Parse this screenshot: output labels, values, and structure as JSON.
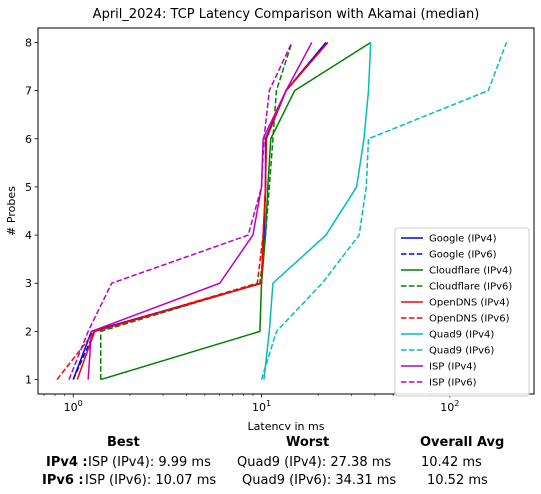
{
  "chart_data": {
    "type": "line",
    "title": "April_2024: TCP Latency Comparison with Akamai (median)",
    "xlabel": "Latency in ms",
    "ylabel": "# Probes",
    "xscale": "log",
    "xlim": [
      0.65,
      280
    ],
    "ylim": [
      0.7,
      8.3
    ],
    "xticks": [
      {
        "v": 1,
        "label": "10^0"
      },
      {
        "v": 10,
        "label": "10^1"
      },
      {
        "v": 100,
        "label": "10^2"
      }
    ],
    "yticks": [
      1,
      2,
      3,
      4,
      5,
      6,
      7,
      8
    ],
    "grid": false,
    "legend": "lower right",
    "series": [
      {
        "name": "Google (IPv4)",
        "color": "#0000ff",
        "dash": false,
        "points": [
          [
            1.0,
            1
          ],
          [
            1.25,
            2
          ],
          [
            10.0,
            3
          ],
          [
            10.3,
            4
          ],
          [
            10.5,
            5
          ],
          [
            10.5,
            6
          ],
          [
            13.5,
            7
          ],
          [
            22.0,
            8
          ]
        ]
      },
      {
        "name": "Google (IPv6)",
        "color": "#0000ff",
        "dash": true,
        "points": [
          [
            1.0,
            1
          ],
          [
            1.3,
            2
          ],
          [
            10.0,
            3
          ],
          [
            10.3,
            4
          ],
          [
            10.5,
            5
          ],
          [
            10.6,
            6
          ],
          [
            13.5,
            7
          ],
          [
            22.0,
            8
          ]
        ]
      },
      {
        "name": "Cloudflare (IPv4)",
        "color": "#008000",
        "dash": false,
        "points": [
          [
            1.4,
            1
          ],
          [
            9.8,
            2
          ],
          [
            10.0,
            3
          ],
          [
            10.5,
            4
          ],
          [
            10.8,
            5
          ],
          [
            11.2,
            6
          ],
          [
            15.0,
            7
          ],
          [
            38.0,
            8
          ]
        ]
      },
      {
        "name": "Cloudflare (IPv6)",
        "color": "#008000",
        "dash": true,
        "points": [
          [
            1.4,
            1
          ],
          [
            1.4,
            2
          ],
          [
            9.8,
            3
          ],
          [
            10.5,
            4
          ],
          [
            11.0,
            5
          ],
          [
            11.5,
            6
          ],
          [
            12.0,
            7
          ],
          [
            14.5,
            8
          ]
        ]
      },
      {
        "name": "OpenDNS (IPv4)",
        "color": "#ff0000",
        "dash": false,
        "points": [
          [
            1.05,
            1
          ],
          [
            1.3,
            2
          ],
          [
            10.0,
            3
          ],
          [
            10.2,
            4
          ],
          [
            10.5,
            5
          ],
          [
            10.6,
            6
          ],
          [
            13.5,
            7
          ],
          [
            22.5,
            8
          ]
        ]
      },
      {
        "name": "OpenDNS (IPv6)",
        "color": "#ff0000",
        "dash": true,
        "points": [
          [
            0.82,
            1
          ],
          [
            1.3,
            2
          ],
          [
            9.5,
            3
          ],
          [
            10.2,
            4
          ],
          [
            10.5,
            5
          ],
          [
            10.6,
            6
          ],
          [
            13.5,
            7
          ],
          [
            22.5,
            8
          ]
        ]
      },
      {
        "name": "Quad9 (IPv4)",
        "color": "#00bfbf",
        "dash": false,
        "points": [
          [
            10.3,
            1
          ],
          [
            11.0,
            2
          ],
          [
            11.5,
            3
          ],
          [
            22.0,
            4
          ],
          [
            32.0,
            5
          ],
          [
            35.0,
            6
          ],
          [
            37.0,
            7
          ],
          [
            38.0,
            8
          ]
        ]
      },
      {
        "name": "Quad9 (IPv6)",
        "color": "#00bfbf",
        "dash": true,
        "points": [
          [
            10.0,
            1
          ],
          [
            12.0,
            2
          ],
          [
            21.0,
            3
          ],
          [
            33.0,
            4
          ],
          [
            36.0,
            5
          ],
          [
            37.0,
            6
          ],
          [
            160.0,
            7
          ],
          [
            200.0,
            8
          ]
        ]
      },
      {
        "name": "ISP (IPv4)",
        "color": "#bf00bf",
        "dash": false,
        "points": [
          [
            1.2,
            1
          ],
          [
            1.25,
            2
          ],
          [
            6.0,
            3
          ],
          [
            9.0,
            4
          ],
          [
            10.0,
            5
          ],
          [
            10.2,
            6
          ],
          [
            13.5,
            7
          ],
          [
            18.5,
            8
          ]
        ]
      },
      {
        "name": "ISP (IPv6)",
        "color": "#bf00bf",
        "dash": true,
        "points": [
          [
            0.95,
            1
          ],
          [
            1.2,
            2
          ],
          [
            1.6,
            3
          ],
          [
            8.5,
            4
          ],
          [
            10.0,
            5
          ],
          [
            10.3,
            6
          ],
          [
            11.0,
            7
          ],
          [
            14.5,
            8
          ]
        ]
      }
    ]
  },
  "summary": {
    "headers": {
      "best": "Best",
      "worst": "Worst",
      "avg": "Overall Avg"
    },
    "rows": [
      {
        "label": "IPv4 :",
        "best": "ISP (IPv4): 9.99 ms",
        "worst": "Quad9 (IPv4): 27.38 ms",
        "avg": "10.42 ms"
      },
      {
        "label": "IPv6 :",
        "best": "ISP (IPv6): 10.07 ms",
        "worst": "Quad9 (IPv6): 34.31 ms",
        "avg": "10.52 ms"
      }
    ]
  }
}
